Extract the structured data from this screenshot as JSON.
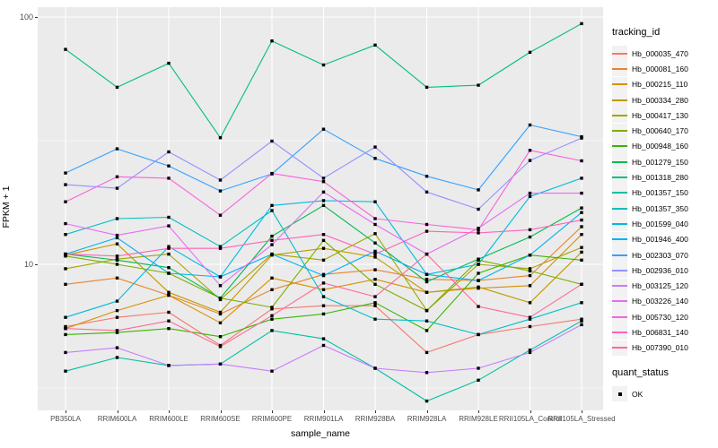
{
  "figure": {
    "panel_bg": "#EBEBEB",
    "grid_color": "#FFFFFF",
    "marker_color": "#000000",
    "axis_text_color": "#4D4D4D"
  },
  "chart_data": {
    "type": "line",
    "title": "",
    "xlabel": "sample_name",
    "ylabel": "FPKM + 1",
    "y_scale": "log10",
    "ylim": [
      2.57,
      110
    ],
    "grid": true,
    "legend_position": "right",
    "y_ticks": [
      "100",
      "10"
    ],
    "y_tick_values": [
      100,
      10
    ],
    "y_minor_tick_values": [
      31.62,
      3.162
    ],
    "legend_title": "tracking_id",
    "legend2_title": "quant_status",
    "legend2_items": [
      {
        "label": "OK"
      }
    ],
    "categories": [
      "PB350LA",
      "RRIM600LA",
      "RRIM600LE",
      "RRIM600SE",
      "RRIM600PE",
      "RRIM901LA",
      "RRIM928BA",
      "RRIM928LA",
      "RRIM928LE",
      "RRII105LA_Control",
      "RRII105LA_Stressed"
    ],
    "series": [
      {
        "name": "Hb_000035_470",
        "color": "#F8766D",
        "values": [
          5.6,
          6.1,
          6.4,
          4.7,
          6.6,
          6.8,
          6.8,
          4.4,
          5.2,
          5.6,
          6.0
        ]
      },
      {
        "name": "Hb_000081_160",
        "color": "#EA8331",
        "values": [
          8.3,
          8.8,
          7.5,
          6.3,
          7.9,
          9.1,
          9.5,
          8.7,
          8.6,
          9.0,
          14.2
        ]
      },
      {
        "name": "Hb_000215_110",
        "color": "#D89000",
        "values": [
          5.5,
          6.5,
          7.5,
          5.8,
          8.8,
          7.9,
          8.7,
          7.7,
          8.0,
          8.2,
          13.2
        ]
      },
      {
        "name": "Hb_000334_280",
        "color": "#C09B00",
        "values": [
          10.9,
          12.1,
          7.7,
          6.4,
          10.9,
          11.6,
          10.7,
          7.7,
          8.1,
          7.0,
          11.2
        ]
      },
      {
        "name": "Hb_000417_130",
        "color": "#A3A500",
        "values": [
          9.6,
          10.5,
          11.0,
          7.2,
          11.0,
          10.4,
          13.3,
          6.5,
          10.0,
          9.6,
          11.7
        ]
      },
      {
        "name": "Hb_000640_170",
        "color": "#7CAE00",
        "values": [
          10.8,
          10.0,
          9.2,
          7.3,
          6.7,
          12.5,
          8.3,
          6.5,
          10.4,
          9.4,
          8.3
        ]
      },
      {
        "name": "Hb_000948_160",
        "color": "#39B600",
        "values": [
          5.2,
          5.3,
          5.5,
          5.1,
          6.0,
          6.3,
          7.0,
          5.4,
          9.2,
          10.9,
          10.4
        ]
      },
      {
        "name": "Hb_001279_150",
        "color": "#00BB4E",
        "values": [
          11.0,
          10.4,
          9.7,
          7.3,
          13.0,
          17.3,
          12.2,
          8.5,
          10.5,
          12.9,
          16.9
        ]
      },
      {
        "name": "Hb_001318_280",
        "color": "#00BF7D",
        "values": [
          74,
          52,
          65,
          32.5,
          80,
          64,
          77,
          52,
          53,
          72,
          94
        ]
      },
      {
        "name": "Hb_001357_150",
        "color": "#00C1A3",
        "values": [
          3.7,
          4.2,
          3.9,
          3.95,
          5.4,
          5.0,
          3.8,
          2.8,
          3.4,
          4.5,
          5.9
        ]
      },
      {
        "name": "Hb_001357_350",
        "color": "#00BFC4",
        "values": [
          13.2,
          15.3,
          15.5,
          11.8,
          16.5,
          7.4,
          6.0,
          5.9,
          5.2,
          6.0,
          7.0
        ]
      },
      {
        "name": "Hb_001599_040",
        "color": "#00BAE0",
        "values": [
          6.1,
          7.1,
          11.8,
          8.9,
          17.3,
          18.1,
          17.9,
          9.1,
          10.0,
          18.8,
          22.3
        ]
      },
      {
        "name": "Hb_001946_400",
        "color": "#00B0F6",
        "values": [
          11.0,
          12.8,
          9.2,
          8.9,
          11.0,
          9.0,
          11.3,
          9.1,
          8.6,
          10.9,
          16.2
        ]
      },
      {
        "name": "Hb_002303_070",
        "color": "#35A2FF",
        "values": [
          23.4,
          29.3,
          25.0,
          19.8,
          23.2,
          35.2,
          26.8,
          22.7,
          20.0,
          36.6,
          32.8
        ]
      },
      {
        "name": "Hb_002936_010",
        "color": "#9590FF",
        "values": [
          21.0,
          20.3,
          28.5,
          21.9,
          31.5,
          22.3,
          29.8,
          19.6,
          16.7,
          26.3,
          32.4
        ]
      },
      {
        "name": "Hb_003125_120",
        "color": "#C77CFF",
        "values": [
          4.4,
          4.6,
          3.9,
          3.95,
          3.7,
          4.7,
          3.8,
          3.65,
          3.8,
          4.4,
          5.7
        ]
      },
      {
        "name": "Hb_003226_140",
        "color": "#E76BF3",
        "values": [
          14.6,
          13.1,
          14.3,
          8.2,
          12.0,
          19.6,
          14.5,
          11.0,
          14.0,
          19.4,
          19.4
        ]
      },
      {
        "name": "Hb_005730_120",
        "color": "#FA62DB",
        "values": [
          17.9,
          22.6,
          22.3,
          15.8,
          23.3,
          21.6,
          15.3,
          14.5,
          13.8,
          28.9,
          26.2
        ]
      },
      {
        "name": "Hb_006831_140",
        "color": "#FF62BC",
        "values": [
          11.0,
          10.8,
          11.6,
          11.6,
          12.5,
          13.2,
          11.0,
          13.6,
          13.4,
          13.8,
          15.1
        ]
      },
      {
        "name": "Hb_007390_010",
        "color": "#FF6A98",
        "values": [
          5.5,
          5.4,
          5.9,
          4.65,
          6.2,
          8.4,
          7.4,
          11.0,
          6.75,
          6.1,
          8.3
        ]
      }
    ]
  }
}
